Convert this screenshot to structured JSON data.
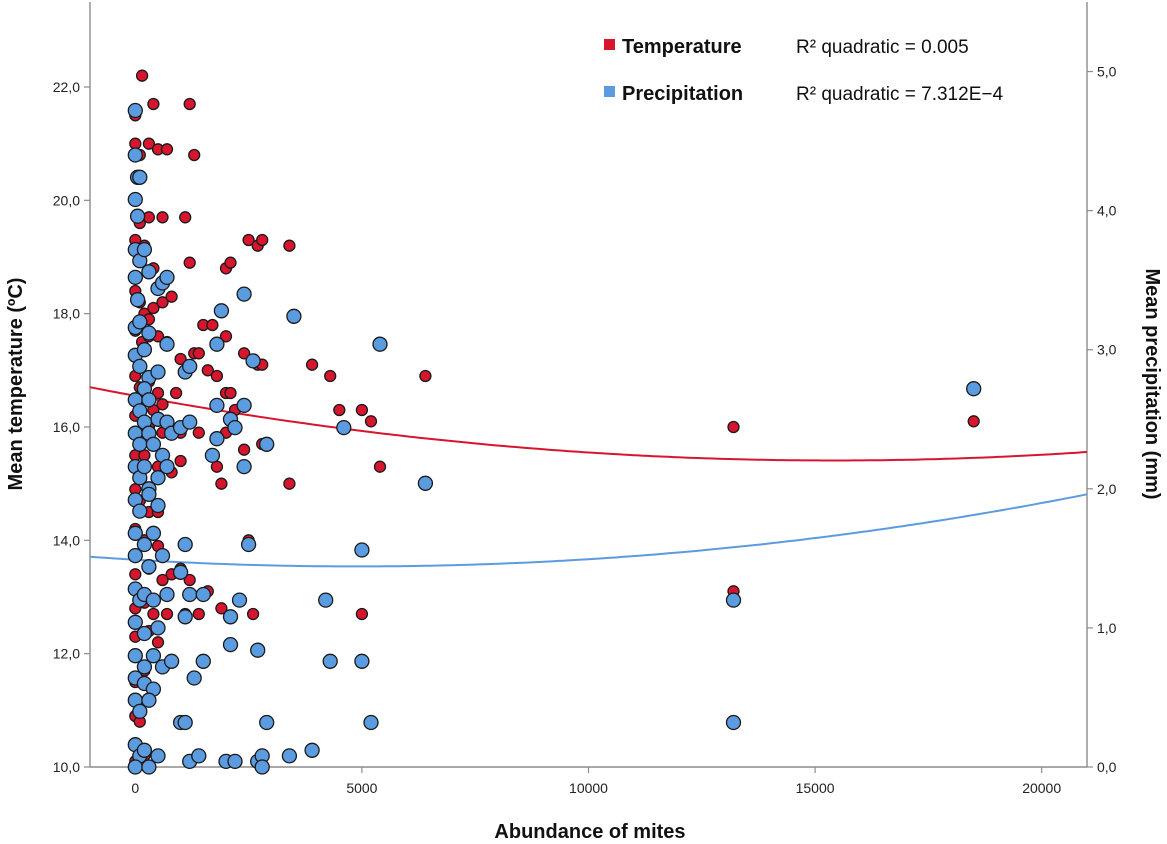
{
  "chart_data": {
    "type": "scatter",
    "title": "",
    "xlabel": "Abundance of mites",
    "ylabel_left": "Mean temperature (ºC)",
    "ylabel_right": "Mean precipitation (mm)",
    "xlim": [
      -1000,
      21000
    ],
    "ylim_left": [
      10,
      23.5
    ],
    "ylim_right": [
      0,
      5.5
    ],
    "x_ticks": [
      "0",
      "5000",
      "10000",
      "15000",
      "20000"
    ],
    "y_left_ticks": [
      "10,0",
      "12,0",
      "14,0",
      "16,0",
      "18,0",
      "20,0",
      "22,0"
    ],
    "y_right_ticks": [
      "0,0",
      "1,0",
      "2,0",
      "3,0",
      "4,0",
      "5,0"
    ],
    "grid": false,
    "legend_position": "top-right",
    "series": [
      {
        "name": "Temperature",
        "axis": "left",
        "color": "#d7152d",
        "fit_label": "R² quadratic = 0.005",
        "fit": {
          "a": 16.55,
          "b": -0.000148,
          "c": 4.8e-09
        },
        "points": [
          [
            150,
            22.2
          ],
          [
            0,
            21.5
          ],
          [
            400,
            21.7
          ],
          [
            1200,
            21.7
          ],
          [
            0,
            21.0
          ],
          [
            100,
            20.8
          ],
          [
            300,
            21.0
          ],
          [
            500,
            20.9
          ],
          [
            700,
            20.9
          ],
          [
            1300,
            20.8
          ],
          [
            0,
            20.0
          ],
          [
            100,
            19.6
          ],
          [
            300,
            19.7
          ],
          [
            600,
            19.7
          ],
          [
            1100,
            19.7
          ],
          [
            0,
            19.3
          ],
          [
            200,
            19.2
          ],
          [
            400,
            18.8
          ],
          [
            1200,
            18.9
          ],
          [
            2000,
            18.8
          ],
          [
            2100,
            18.9
          ],
          [
            2500,
            19.3
          ],
          [
            2700,
            19.2
          ],
          [
            2800,
            19.3
          ],
          [
            3400,
            19.2
          ],
          [
            0,
            18.4
          ],
          [
            100,
            18.2
          ],
          [
            200,
            18.0
          ],
          [
            300,
            17.9
          ],
          [
            400,
            18.1
          ],
          [
            600,
            18.2
          ],
          [
            800,
            18.3
          ],
          [
            0,
            17.7
          ],
          [
            150,
            17.5
          ],
          [
            300,
            17.6
          ],
          [
            500,
            17.6
          ],
          [
            700,
            17.5
          ],
          [
            1500,
            17.8
          ],
          [
            1700,
            17.8
          ],
          [
            2000,
            17.6
          ],
          [
            1000,
            17.2
          ],
          [
            1300,
            17.3
          ],
          [
            1400,
            17.3
          ],
          [
            1600,
            17.0
          ],
          [
            2400,
            17.3
          ],
          [
            2700,
            17.1
          ],
          [
            2800,
            17.1
          ],
          [
            3900,
            17.1
          ],
          [
            4300,
            16.9
          ],
          [
            6400,
            16.9
          ],
          [
            0,
            16.9
          ],
          [
            100,
            16.7
          ],
          [
            200,
            16.5
          ],
          [
            300,
            16.8
          ],
          [
            400,
            16.3
          ],
          [
            500,
            16.6
          ],
          [
            600,
            16.4
          ],
          [
            900,
            16.6
          ],
          [
            1800,
            16.9
          ],
          [
            2000,
            16.6
          ],
          [
            2100,
            16.6
          ],
          [
            4500,
            16.3
          ],
          [
            5000,
            16.3
          ],
          [
            5200,
            16.1
          ],
          [
            0,
            16.2
          ],
          [
            300,
            16.0
          ],
          [
            600,
            15.9
          ],
          [
            700,
            16.1
          ],
          [
            1000,
            15.9
          ],
          [
            1400,
            15.9
          ],
          [
            2000,
            15.9
          ],
          [
            2200,
            16.3
          ],
          [
            2800,
            15.7
          ],
          [
            0,
            15.5
          ],
          [
            200,
            15.5
          ],
          [
            500,
            15.3
          ],
          [
            800,
            15.2
          ],
          [
            1000,
            15.4
          ],
          [
            1800,
            15.3
          ],
          [
            2400,
            15.6
          ],
          [
            5400,
            15.3
          ],
          [
            0,
            14.9
          ],
          [
            100,
            14.7
          ],
          [
            300,
            14.5
          ],
          [
            500,
            14.5
          ],
          [
            1900,
            15.0
          ],
          [
            3400,
            15.0
          ],
          [
            13200,
            16.0
          ],
          [
            18500,
            16.1
          ],
          [
            0,
            14.2
          ],
          [
            200,
            14.0
          ],
          [
            500,
            13.9
          ],
          [
            2500,
            14.0
          ],
          [
            0,
            13.4
          ],
          [
            300,
            13.5
          ],
          [
            600,
            13.3
          ],
          [
            800,
            13.4
          ],
          [
            1000,
            13.5
          ],
          [
            1200,
            13.3
          ],
          [
            1600,
            13.1
          ],
          [
            13200,
            13.1
          ],
          [
            0,
            12.8
          ],
          [
            200,
            12.9
          ],
          [
            400,
            12.7
          ],
          [
            700,
            12.7
          ],
          [
            1100,
            12.7
          ],
          [
            1400,
            12.7
          ],
          [
            1900,
            12.8
          ],
          [
            2600,
            12.7
          ],
          [
            5000,
            12.7
          ],
          [
            0,
            12.3
          ],
          [
            300,
            12.4
          ],
          [
            500,
            12.2
          ],
          [
            0,
            11.5
          ],
          [
            200,
            11.7
          ],
          [
            0,
            10.9
          ],
          [
            100,
            10.8
          ],
          [
            0,
            10.4
          ],
          [
            200,
            10.2
          ],
          [
            0,
            10.1
          ]
        ]
      },
      {
        "name": "Precipitation",
        "axis": "right",
        "color": "#5b9be0",
        "fit_label": "R² quadratic = 7.312E−4",
        "fit": {
          "a": 1.49,
          "b": -1.96e-05,
          "c": 2e-09
        },
        "points": [
          [
            0,
            4.72
          ],
          [
            0,
            4.4
          ],
          [
            0,
            4.08
          ],
          [
            50,
            4.24
          ],
          [
            100,
            4.24
          ],
          [
            50,
            3.96
          ],
          [
            0,
            3.72
          ],
          [
            100,
            3.64
          ],
          [
            200,
            3.72
          ],
          [
            300,
            3.56
          ],
          [
            0,
            3.52
          ],
          [
            50,
            3.36
          ],
          [
            0,
            3.16
          ],
          [
            100,
            3.2
          ],
          [
            300,
            3.12
          ],
          [
            500,
            3.44
          ],
          [
            600,
            3.48
          ],
          [
            700,
            3.52
          ],
          [
            1900,
            3.28
          ],
          [
            2400,
            3.4
          ],
          [
            3500,
            3.24
          ],
          [
            0,
            2.96
          ],
          [
            100,
            2.88
          ],
          [
            200,
            3.0
          ],
          [
            300,
            2.8
          ],
          [
            500,
            2.84
          ],
          [
            700,
            3.04
          ],
          [
            1800,
            3.04
          ],
          [
            2600,
            2.92
          ],
          [
            5400,
            3.04
          ],
          [
            1100,
            2.84
          ],
          [
            1200,
            2.88
          ],
          [
            0,
            2.64
          ],
          [
            100,
            2.56
          ],
          [
            200,
            2.72
          ],
          [
            300,
            2.64
          ],
          [
            500,
            2.5
          ],
          [
            700,
            2.48
          ],
          [
            1800,
            2.6
          ],
          [
            2100,
            2.5
          ],
          [
            2400,
            2.6
          ],
          [
            0,
            2.4
          ],
          [
            100,
            2.32
          ],
          [
            200,
            2.48
          ],
          [
            300,
            2.4
          ],
          [
            400,
            2.32
          ],
          [
            600,
            2.24
          ],
          [
            800,
            2.4
          ],
          [
            1000,
            2.44
          ],
          [
            1200,
            2.48
          ],
          [
            1800,
            2.36
          ],
          [
            2200,
            2.44
          ],
          [
            2900,
            2.32
          ],
          [
            4600,
            2.44
          ],
          [
            0,
            2.16
          ],
          [
            100,
            2.08
          ],
          [
            200,
            2.16
          ],
          [
            300,
            2.0
          ],
          [
            500,
            2.08
          ],
          [
            700,
            2.16
          ],
          [
            1700,
            2.24
          ],
          [
            2400,
            2.16
          ],
          [
            6400,
            2.04
          ],
          [
            0,
            1.92
          ],
          [
            100,
            1.84
          ],
          [
            300,
            1.96
          ],
          [
            500,
            1.88
          ],
          [
            0,
            1.68
          ],
          [
            200,
            1.6
          ],
          [
            400,
            1.68
          ],
          [
            1100,
            1.6
          ],
          [
            2500,
            1.6
          ],
          [
            5000,
            1.56
          ],
          [
            0,
            1.52
          ],
          [
            300,
            1.44
          ],
          [
            600,
            1.52
          ],
          [
            1000,
            1.4
          ],
          [
            0,
            1.28
          ],
          [
            100,
            1.2
          ],
          [
            200,
            1.24
          ],
          [
            400,
            1.2
          ],
          [
            700,
            1.24
          ],
          [
            1200,
            1.24
          ],
          [
            1500,
            1.24
          ],
          [
            2100,
            1.08
          ],
          [
            2300,
            1.2
          ],
          [
            4200,
            1.2
          ],
          [
            13200,
            1.2
          ],
          [
            18500,
            2.72
          ],
          [
            0,
            1.04
          ],
          [
            200,
            0.96
          ],
          [
            500,
            1.0
          ],
          [
            1100,
            1.08
          ],
          [
            2100,
            0.88
          ],
          [
            2700,
            0.84
          ],
          [
            0,
            0.8
          ],
          [
            200,
            0.72
          ],
          [
            400,
            0.8
          ],
          [
            600,
            0.72
          ],
          [
            800,
            0.76
          ],
          [
            1500,
            0.76
          ],
          [
            4300,
            0.76
          ],
          [
            5000,
            0.76
          ],
          [
            0,
            0.64
          ],
          [
            200,
            0.6
          ],
          [
            400,
            0.56
          ],
          [
            1300,
            0.64
          ],
          [
            0,
            0.48
          ],
          [
            100,
            0.4
          ],
          [
            300,
            0.48
          ],
          [
            1000,
            0.32
          ],
          [
            1100,
            0.32
          ],
          [
            2900,
            0.32
          ],
          [
            5200,
            0.32
          ],
          [
            13200,
            0.32
          ],
          [
            0,
            0.16
          ],
          [
            100,
            0.08
          ],
          [
            200,
            0.12
          ],
          [
            500,
            0.08
          ],
          [
            1200,
            0.04
          ],
          [
            1400,
            0.08
          ],
          [
            2000,
            0.04
          ],
          [
            2200,
            0.04
          ],
          [
            2700,
            0.04
          ],
          [
            2800,
            0.08
          ],
          [
            3400,
            0.08
          ],
          [
            3900,
            0.12
          ],
          [
            0,
            0.0
          ],
          [
            300,
            0.0
          ],
          [
            2800,
            0.0
          ]
        ]
      }
    ]
  }
}
